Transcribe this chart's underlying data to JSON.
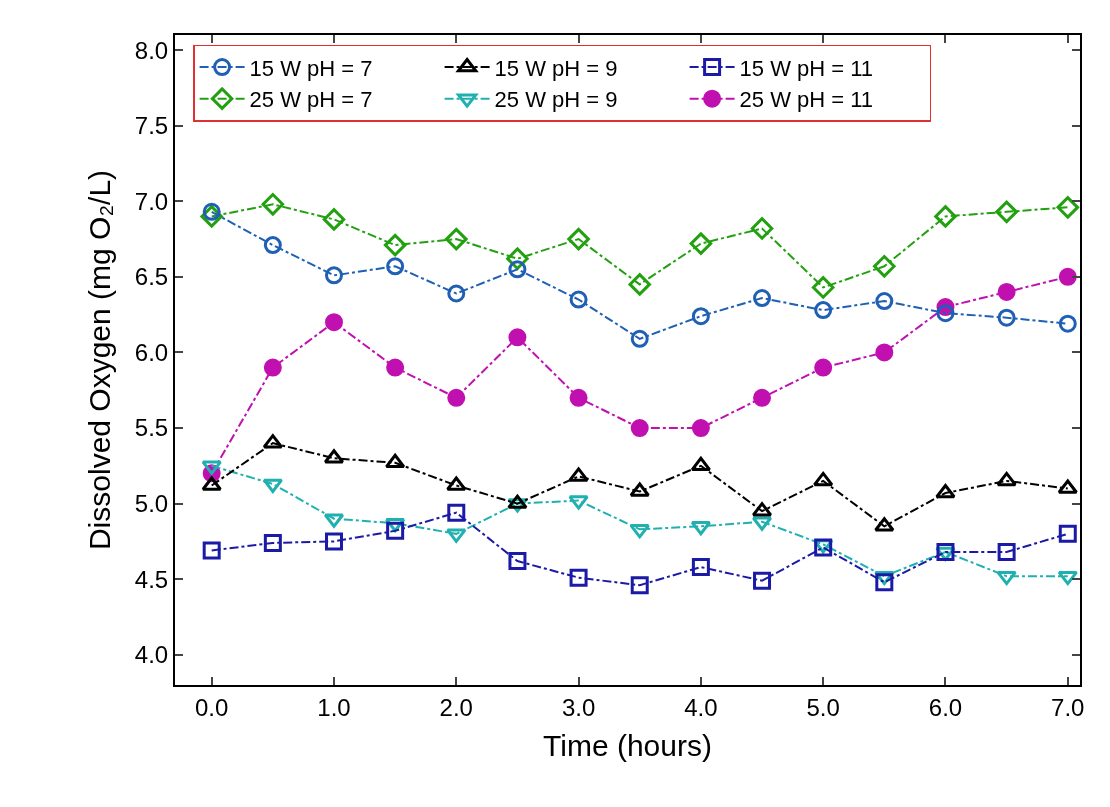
{
  "chart_data": {
    "type": "line",
    "xlabel": "Time (hours)",
    "ylabel": "Dissolved Oxygen (mg O₂/L)",
    "x": [
      0,
      0.5,
      1,
      1.5,
      2,
      2.5,
      3,
      3.5,
      4,
      4.5,
      5,
      5.5,
      6,
      6.5,
      7
    ],
    "xlim": [
      -0.3,
      7.1
    ],
    "ylim": [
      3.8,
      8.1
    ],
    "xticks": [
      {
        "value": 0,
        "label": "0.0"
      },
      {
        "value": 1,
        "label": "1.0"
      },
      {
        "value": 2,
        "label": "2.0"
      },
      {
        "value": 3,
        "label": "3.0"
      },
      {
        "value": 4,
        "label": "4.0"
      },
      {
        "value": 5,
        "label": "5.0"
      },
      {
        "value": 6,
        "label": "6.0"
      },
      {
        "value": 7,
        "label": "7.0"
      }
    ],
    "yticks": [
      {
        "value": 4,
        "label": "4.0"
      },
      {
        "value": 4.5,
        "label": "4.5"
      },
      {
        "value": 5,
        "label": "5.0"
      },
      {
        "value": 5.5,
        "label": "5.5"
      },
      {
        "value": 6,
        "label": "6.0"
      },
      {
        "value": 6.5,
        "label": "6.5"
      },
      {
        "value": 7,
        "label": "7.0"
      },
      {
        "value": 7.5,
        "label": "7.5"
      },
      {
        "value": 8,
        "label": "8.0"
      }
    ],
    "legend": "top",
    "line_style": "dashed",
    "series": [
      {
        "name": "15 W pH = 7",
        "color": "#1f5fb4",
        "marker": "circle",
        "values": [
          6.93,
          6.71,
          6.51,
          6.57,
          6.39,
          6.55,
          6.35,
          6.09,
          6.24,
          6.36,
          6.28,
          6.34,
          6.26,
          6.23,
          6.19
        ]
      },
      {
        "name": "15 W pH = 9",
        "color": "#000000",
        "marker": "triangle",
        "values": [
          5.12,
          5.4,
          5.3,
          5.27,
          5.12,
          5.0,
          5.18,
          5.08,
          5.25,
          4.95,
          5.15,
          4.85,
          5.07,
          5.15,
          5.1
        ]
      },
      {
        "name": "15 W pH = 11",
        "color": "#1a1aa6",
        "marker": "square",
        "values": [
          4.69,
          4.74,
          4.75,
          4.82,
          4.94,
          4.62,
          4.51,
          4.46,
          4.58,
          4.49,
          4.71,
          4.48,
          4.68,
          4.68,
          4.8
        ]
      },
      {
        "name": "25 W pH = 7",
        "color": "#22a010",
        "marker": "diamond",
        "values": [
          6.9,
          6.98,
          6.88,
          6.71,
          6.75,
          6.62,
          6.75,
          6.45,
          6.72,
          6.82,
          6.43,
          6.57,
          6.9,
          6.93,
          6.96
        ]
      },
      {
        "name": "25 W pH = 9",
        "color": "#20b0b0",
        "marker": "triangle-down",
        "values": [
          5.25,
          5.13,
          4.9,
          4.87,
          4.8,
          5.0,
          5.02,
          4.83,
          4.85,
          4.88,
          4.73,
          4.52,
          4.68,
          4.52,
          4.52
        ]
      },
      {
        "name": "25 W pH = 11",
        "color": "#c010b0",
        "marker": "circle-filled",
        "values": [
          5.2,
          5.9,
          6.2,
          5.9,
          5.7,
          6.1,
          5.7,
          5.5,
          5.5,
          5.7,
          5.9,
          6.0,
          6.3,
          6.4,
          6.5
        ]
      }
    ]
  }
}
